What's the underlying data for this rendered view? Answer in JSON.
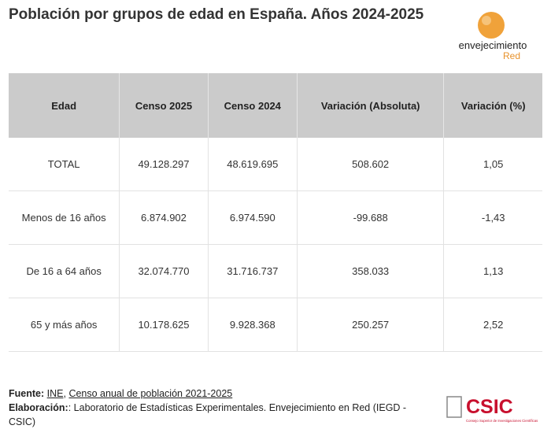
{
  "header": {
    "title": "Población por grupos de edad en España. Años 2024-2025",
    "logo": {
      "main": "envejecimiento",
      "sub": "Red"
    }
  },
  "table": {
    "columns": [
      "Edad",
      "Censo 2025",
      "Censo 2024",
      "Variación (Absoluta)",
      "Variación (%)"
    ],
    "rows": [
      [
        "TOTAL",
        "49.128.297",
        "48.619.695",
        "508.602",
        "1,05"
      ],
      [
        "Menos de 16 años",
        "6.874.902",
        "6.974.590",
        "-99.688",
        "-1,43"
      ],
      [
        "De 16 a 64 años",
        "32.074.770",
        "31.716.737",
        "358.033",
        "1,13"
      ],
      [
        "65 y más años",
        "10.178.625",
        "9.928.368",
        "250.257",
        "2,52"
      ]
    ]
  },
  "footer": {
    "source_label": "Fuente:",
    "source_links": [
      "INE",
      "Censo anual de población 2021-2025"
    ],
    "source_sep": ",",
    "credit_label": "Elaboración:",
    "credit_text": ": Laboratorio de Estadísticas Experimentales. Envejecimiento en Red (IEGD - CSIC)",
    "csic": {
      "name": "CSIC",
      "full": "Consejo Superior de Investigaciones Científicas"
    }
  }
}
